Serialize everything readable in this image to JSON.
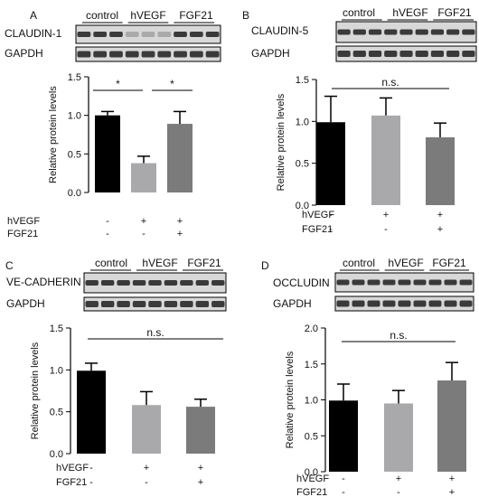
{
  "colors": {
    "black": "#000000",
    "light_grey": "#a9a9ab",
    "mid_grey": "#7b7b7c",
    "blot_dark": "#1e1e1e",
    "blot_bg": "#d8d8d8"
  },
  "panels": [
    {
      "letter": "A",
      "blot": {
        "groups": [
          "control",
          "hVEGF",
          "FGF21"
        ],
        "protein": "CLAUDIN-1",
        "loading": "GAPDH"
      },
      "treatments": [
        {
          "label": "hVEGF",
          "marks": [
            "-",
            "+",
            "+"
          ]
        },
        {
          "label": "FGF21",
          "marks": [
            "-",
            "-",
            "+"
          ]
        }
      ],
      "significance": [
        "*",
        "*"
      ]
    },
    {
      "letter": "B",
      "blot": {
        "groups": [
          "control",
          "hVEGF",
          "FGF21"
        ],
        "protein": "CLAUDIN-5",
        "loading": "GAPDH"
      },
      "treatments": [
        {
          "label": "hVEGF",
          "marks": [
            "-",
            "+",
            "+"
          ]
        },
        {
          "label": "FGF21",
          "marks": [
            "-",
            "-",
            "+"
          ]
        }
      ],
      "significance": [
        "n.s."
      ]
    },
    {
      "letter": "C",
      "blot": {
        "groups": [
          "control",
          "hVEGF",
          "FGF21"
        ],
        "protein": "VE-CADHERIN",
        "loading": "GAPDH"
      },
      "treatments": [
        {
          "label": "hVEGF",
          "marks": [
            "-",
            "+",
            "+"
          ]
        },
        {
          "label": "FGF21",
          "marks": [
            "-",
            "-",
            "+"
          ]
        }
      ],
      "significance": [
        "n.s."
      ]
    },
    {
      "letter": "D",
      "blot": {
        "groups": [
          "control",
          "hVEGF",
          "FGF21"
        ],
        "protein": "OCCLUDIN",
        "loading": "GAPDH"
      },
      "treatments": [
        {
          "label": "hVEGF",
          "marks": [
            "-",
            "+",
            "+"
          ]
        },
        {
          "label": "FGF21",
          "marks": [
            "-",
            "-",
            "+"
          ]
        }
      ],
      "significance": [
        "n.s."
      ]
    }
  ],
  "chart_data": [
    {
      "type": "bar",
      "panel": "A",
      "ylabel": "Relative protein levels",
      "ylim": [
        0,
        1.5
      ],
      "yticks": [
        0.0,
        0.5,
        1.0,
        1.5
      ],
      "ytick_labels": [
        "0.0",
        "0.5",
        "1.0",
        "1.5"
      ],
      "values": [
        1.0,
        0.38,
        0.89
      ],
      "errors": [
        0.05,
        0.09,
        0.16
      ],
      "bar_colors": [
        "#000000",
        "#a9a9ab",
        "#7b7b7c"
      ]
    },
    {
      "type": "bar",
      "panel": "B",
      "ylabel": "Relative protein levels",
      "ylim": [
        0,
        1.5
      ],
      "yticks": [
        0.0,
        0.5,
        1.0,
        1.5
      ],
      "ytick_labels": [
        "0.0",
        "0.5",
        "1.0",
        "1.5"
      ],
      "values": [
        0.99,
        1.07,
        0.81
      ],
      "errors": [
        0.31,
        0.21,
        0.17
      ],
      "bar_colors": [
        "#000000",
        "#a9a9ab",
        "#7b7b7c"
      ]
    },
    {
      "type": "bar",
      "panel": "C",
      "ylabel": "Relative protein levels",
      "ylim": [
        0,
        1.5
      ],
      "yticks": [
        0.0,
        0.5,
        1.0,
        1.5
      ],
      "ytick_labels": [
        "0.0",
        "0.5",
        "1.0",
        "1.5"
      ],
      "values": [
        0.99,
        0.58,
        0.56
      ],
      "errors": [
        0.09,
        0.16,
        0.09
      ],
      "bar_colors": [
        "#000000",
        "#a9a9ab",
        "#7b7b7c"
      ]
    },
    {
      "type": "bar",
      "panel": "D",
      "ylabel": "Relative protein levels",
      "ylim": [
        0,
        2.0
      ],
      "yticks": [
        0.0,
        0.5,
        1.0,
        1.5,
        2.0
      ],
      "ytick_labels": [
        "0.0",
        "0.5",
        "1.0",
        "1.5",
        "2.0"
      ],
      "values": [
        0.99,
        0.95,
        1.27
      ],
      "errors": [
        0.23,
        0.18,
        0.25
      ],
      "bar_colors": [
        "#000000",
        "#a9a9ab",
        "#7b7b7c"
      ]
    }
  ]
}
